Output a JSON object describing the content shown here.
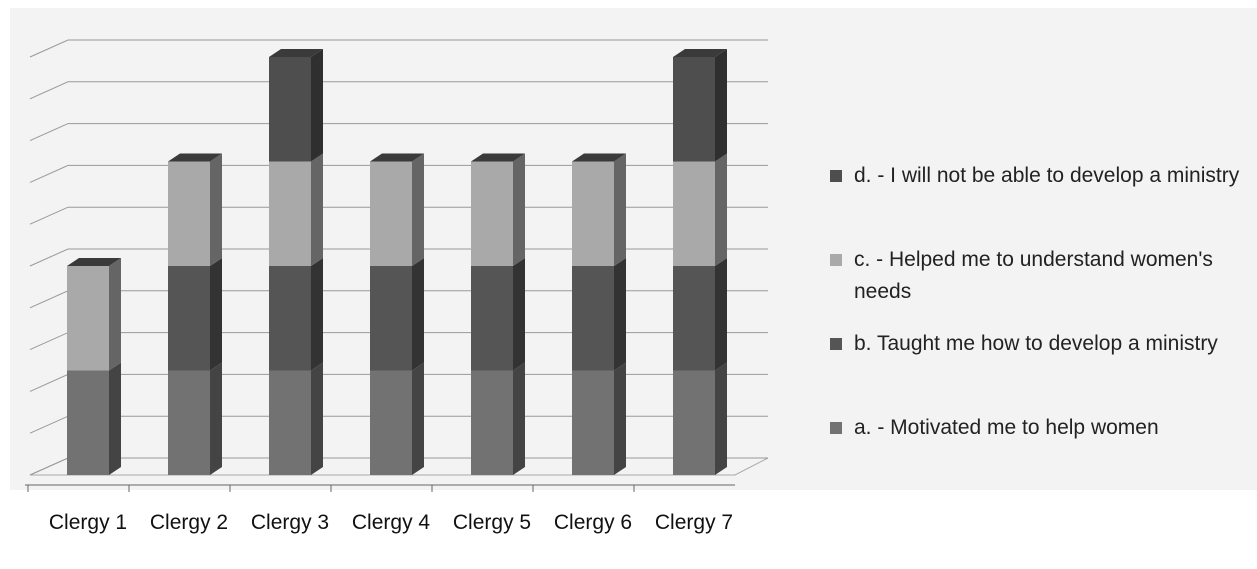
{
  "chart_data": {
    "type": "bar3d_stacked",
    "categories": [
      "Clergy 1",
      "Clergy 2",
      "Clergy 3",
      "Clergy 4",
      "Clergy 5",
      "Clergy 6",
      "Clergy 7"
    ],
    "series": [
      {
        "name": "a. - Motivated me to help women",
        "color": "#727272",
        "values": [
          1,
          1,
          1,
          1,
          1,
          1,
          1
        ]
      },
      {
        "name": "b.  Taught me how to develop a ministry",
        "color": "#555555",
        "values": [
          0,
          1,
          1,
          1,
          1,
          1,
          1
        ]
      },
      {
        "name": "c. - Helped me to understand women's needs",
        "color": "#a9a9a9",
        "values": [
          1,
          1,
          1,
          1,
          1,
          1,
          1
        ]
      },
      {
        "name": "d. - I will not be able to develop a ministry",
        "color": "#4e4e4e",
        "values": [
          0,
          0,
          1,
          0,
          0,
          0,
          1
        ]
      }
    ],
    "ylim": [
      0,
      4
    ],
    "yticks": [
      0,
      0.4,
      0.8,
      1.2,
      1.6,
      2,
      2.4,
      2.8,
      3.2,
      3.6,
      4
    ],
    "grid": true
  }
}
